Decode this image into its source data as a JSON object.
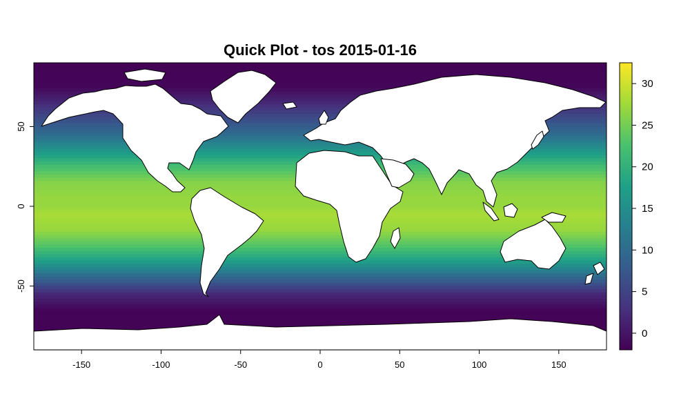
{
  "title": "Quick Plot - tos 2015-01-16",
  "colors": {
    "land": "#ffffff",
    "coast": "#000000",
    "viridis": [
      "#440154",
      "#46327e",
      "#365c8d",
      "#277f8e",
      "#1fa187",
      "#4ac16d",
      "#a0da39",
      "#fde725"
    ]
  },
  "chart_data": {
    "type": "heatmap",
    "title": "Quick Plot - tos 2015-01-16",
    "variable": "tos",
    "date": "2015-01-16",
    "xlim": [
      -180,
      180
    ],
    "ylim": [
      -90,
      90
    ],
    "x_ticks": [
      -150,
      -100,
      -50,
      0,
      50,
      100,
      150
    ],
    "y_ticks": [
      -50,
      0,
      50
    ],
    "x_tick_labels": [
      "-150",
      "-100",
      "-50",
      "0",
      "50",
      "100",
      "150"
    ],
    "y_tick_labels": [
      "-50",
      "0",
      "50"
    ],
    "colorbar": {
      "range": [
        -2,
        32.5
      ],
      "ticks": [
        0,
        5,
        10,
        15,
        20,
        25,
        30
      ],
      "tick_labels": [
        "0",
        "5",
        "10",
        "15",
        "20",
        "25",
        "30"
      ],
      "colormap": "viridis"
    },
    "zonal_profile": {
      "lat": [
        -90,
        -75,
        -65,
        -55,
        -45,
        -35,
        -25,
        -15,
        -5,
        0,
        5,
        15,
        25,
        35,
        45,
        55,
        65,
        75,
        90
      ],
      "tos": [
        -1.8,
        -1.8,
        -1.5,
        2,
        9,
        17,
        23,
        27,
        28,
        27,
        27,
        26,
        22,
        16,
        10,
        6,
        2,
        -1.5,
        -1.8
      ]
    }
  }
}
